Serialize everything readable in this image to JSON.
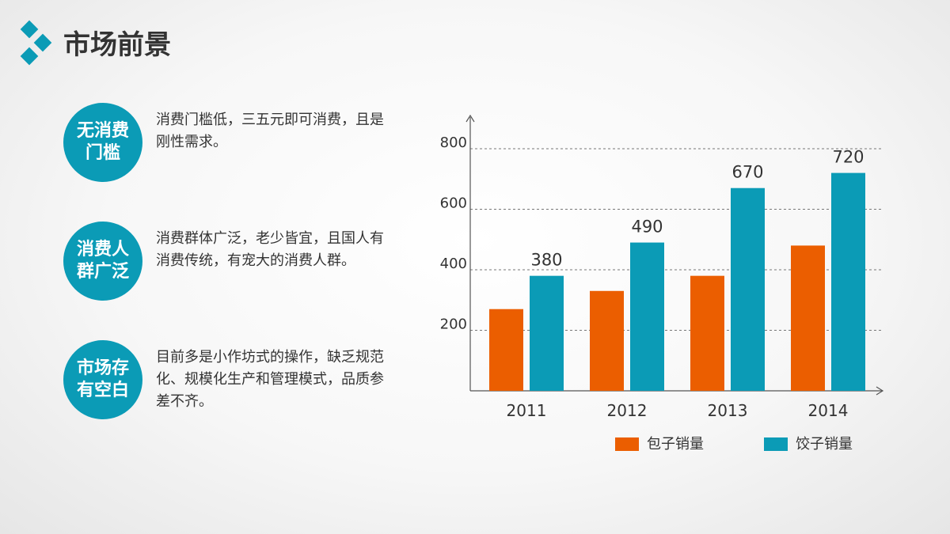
{
  "header": {
    "title": "市场前景"
  },
  "colors": {
    "accent": "#0b9bb6",
    "orange": "#eb5e00",
    "teal": "#0b9bb6",
    "text": "#333333",
    "axis": "#555555",
    "grid": "#777777"
  },
  "features": [
    {
      "badge": "无消费\n门槛",
      "text": "消费门槛低，三五元即可消费，且是刚性需求。"
    },
    {
      "badge": "消费人\n群广泛",
      "text": "消费群体广泛，老少皆宜，且国人有消费传统，有宠大的消费人群。"
    },
    {
      "badge": "市场存\n有空白",
      "text": "目前多是小作坊式的操作，缺乏规范化、规模化生产和管理模式，品质参差不齐。"
    }
  ],
  "chart_data": {
    "type": "bar",
    "categories": [
      "2011",
      "2012",
      "2013",
      "2014"
    ],
    "series": [
      {
        "name": "包子销量",
        "values": [
          270,
          330,
          380,
          480
        ],
        "color": "#eb5e00"
      },
      {
        "name": "饺子销量",
        "values": [
          380,
          490,
          670,
          720
        ],
        "color": "#0b9bb6"
      }
    ],
    "data_labels": {
      "series": "饺子销量",
      "values": [
        "380",
        "490",
        "670",
        "720"
      ]
    },
    "y_ticks": [
      "200",
      "400",
      "600",
      "800"
    ],
    "ylim": [
      0,
      800
    ],
    "grid": true,
    "legend": "bottom"
  }
}
